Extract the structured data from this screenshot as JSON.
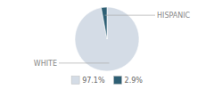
{
  "chart_data": {
    "type": "pie",
    "categories": [
      "WHITE",
      "HISPANIC"
    ],
    "values": [
      97.1,
      2.9
    ],
    "value_labels": [
      "97.1%",
      "2.9%"
    ],
    "colors": [
      "#d4dce6",
      "#2e5f74"
    ],
    "legend": "bottom"
  }
}
